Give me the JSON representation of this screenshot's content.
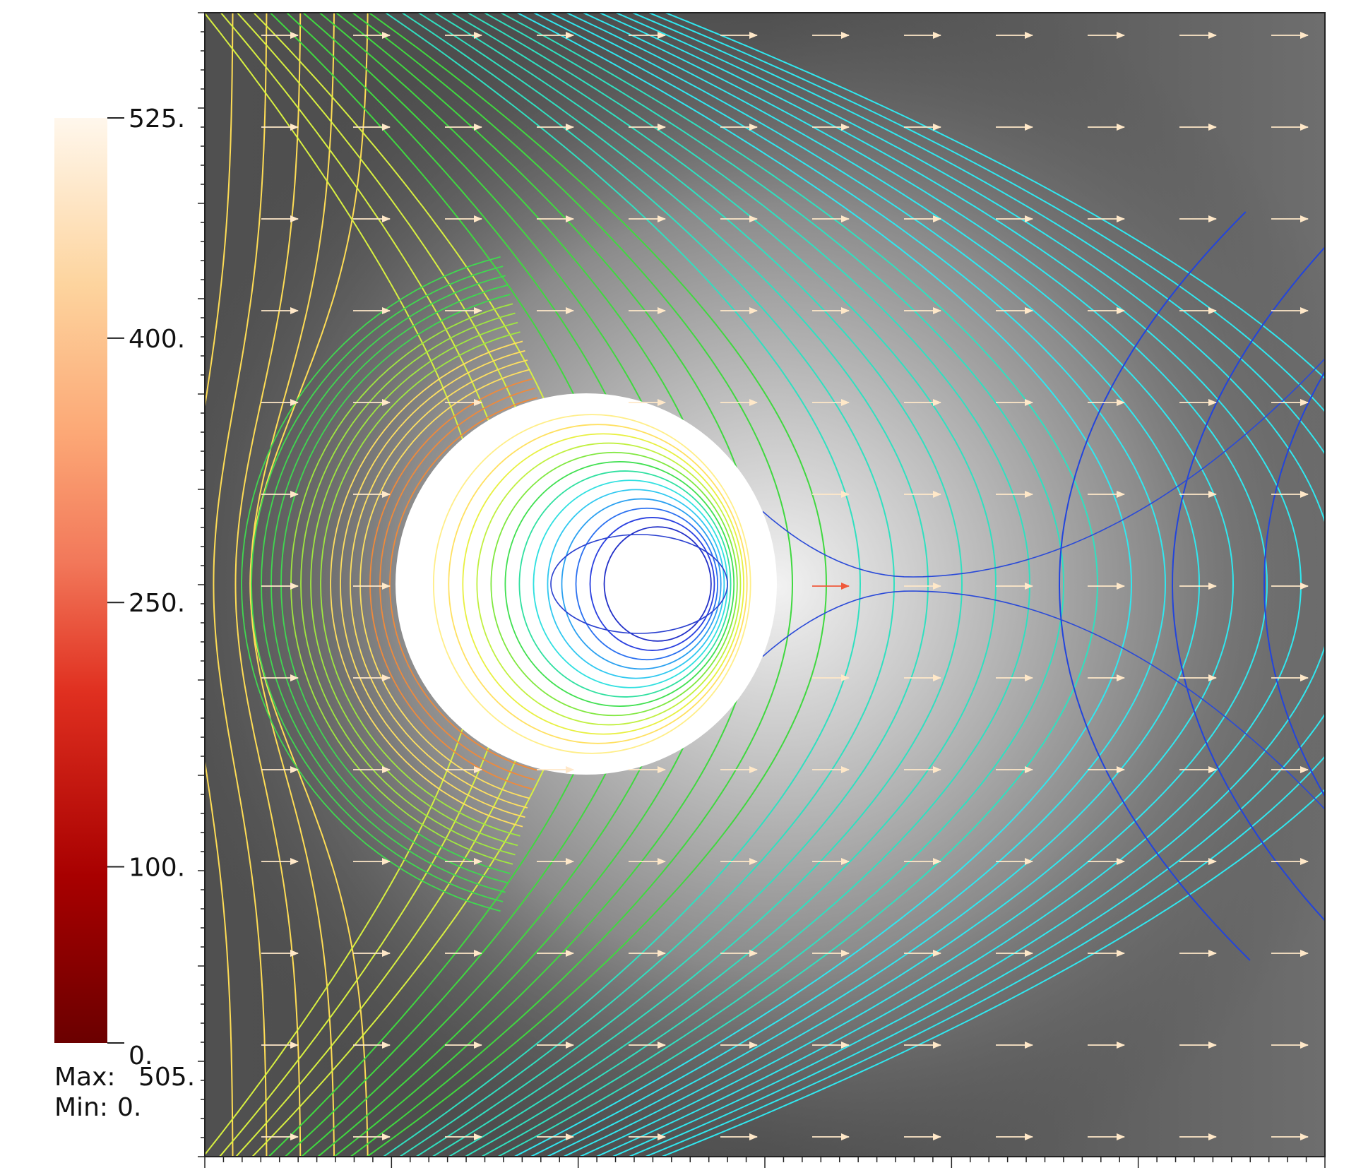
{
  "chart_data": {
    "type": "contour",
    "colorbar": {
      "scale_label_ticks": [
        "525.",
        "400.",
        "250.",
        "100.",
        "0."
      ],
      "scale_tick_values": [
        525,
        400,
        250,
        100,
        0
      ],
      "range": [
        0,
        525
      ],
      "colormap": [
        "#6b0000",
        "#a80000",
        "#e03020",
        "#f2785a",
        "#fca876",
        "#fdd49e",
        "#fff7ec"
      ]
    },
    "stats": {
      "max_label": "Max:",
      "max_value": "505.",
      "min_label": "Min:",
      "min_value": "0."
    },
    "field": {
      "background": "grayscale",
      "glyphs": "arrows",
      "arrow_columns": 12,
      "arrow_rows": 13,
      "obstacle": "circle"
    },
    "grid": false,
    "legend": "left"
  }
}
